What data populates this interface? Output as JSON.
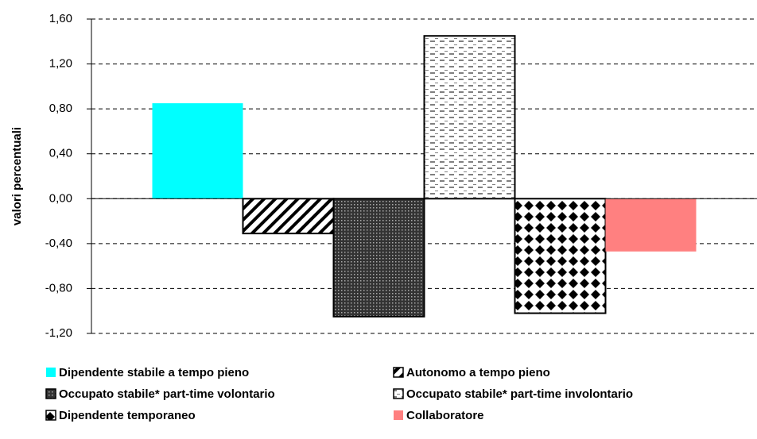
{
  "chart_data": {
    "type": "bar",
    "y_label": "valori percentuali",
    "categories": [
      null
    ],
    "series": [
      {
        "name": "Dipendente stabile a tempo pieno",
        "color": "#00ffff",
        "pattern": "solid",
        "values": [
          0.85
        ]
      },
      {
        "name": "Autonomo a tempo pieno",
        "color": "#ffffff",
        "pattern": "diagonal",
        "values": [
          -0.31
        ]
      },
      {
        "name": "Occupato stabile* part-time volontario",
        "color": "#ffffff",
        "pattern": "dense-dots",
        "values": [
          -1.05
        ]
      },
      {
        "name": "Occupato stabile* part-time involontario",
        "color": "#ffffff",
        "pattern": "dashes",
        "values": [
          1.45
        ]
      },
      {
        "name": "Dipendente temporaneo",
        "color": "#ffffff",
        "pattern": "diamonds",
        "values": [
          -1.02
        ]
      },
      {
        "name": "Collaboratore",
        "color": "#ff8080",
        "pattern": "solid",
        "values": [
          -0.47
        ]
      }
    ],
    "ylim": [
      -1.2,
      1.6
    ],
    "yticks": [
      {
        "value": -1.2,
        "label": "-1,20"
      },
      {
        "value": -0.8,
        "label": "-0,80"
      },
      {
        "value": -0.4,
        "label": "-0,40"
      },
      {
        "value": 0,
        "label": "0,00"
      },
      {
        "value": 0.4,
        "label": "0,40"
      },
      {
        "value": 0.8,
        "label": "0,80"
      },
      {
        "value": 1.2,
        "label": "1,20"
      },
      {
        "value": 1.6,
        "label": "1,60"
      }
    ],
    "grid": true,
    "legend": "bottom"
  }
}
